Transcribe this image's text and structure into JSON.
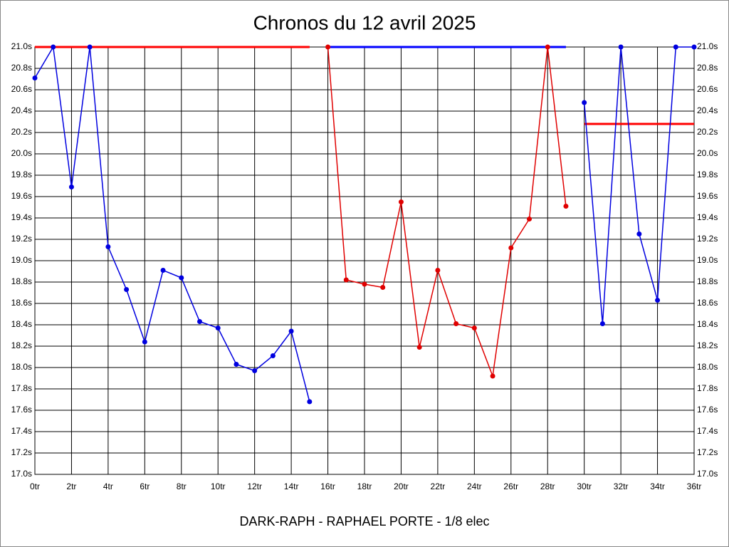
{
  "chart_data": {
    "type": "line",
    "title": "Chronos du 12 avril 2025",
    "footer": "DARK-RAPH - RAPHAEL PORTE - 1/8 elec",
    "x": [
      0,
      1,
      2,
      3,
      4,
      5,
      6,
      7,
      8,
      9,
      10,
      11,
      12,
      13,
      14,
      15,
      16,
      17,
      18,
      19,
      20,
      21,
      22,
      23,
      24,
      25,
      26,
      27,
      28,
      29,
      30,
      31,
      32,
      33,
      34,
      35,
      36
    ],
    "series": [
      {
        "color": "#0000e0",
        "values": [
          20.71,
          21.0,
          19.69,
          21.0,
          19.13,
          18.73,
          18.24,
          18.91,
          18.84,
          18.43,
          18.37,
          18.03,
          17.97,
          18.11,
          18.34,
          17.68,
          null,
          null,
          null,
          null,
          null,
          null,
          null,
          null,
          null,
          null,
          null,
          null,
          null,
          null,
          null,
          null,
          null,
          null,
          null,
          null,
          null
        ]
      },
      {
        "color": "#e00000",
        "values": [
          null,
          null,
          null,
          null,
          null,
          null,
          null,
          null,
          null,
          null,
          null,
          null,
          null,
          null,
          null,
          null,
          21.0,
          18.82,
          18.78,
          18.75,
          19.55,
          18.19,
          18.91,
          18.41,
          18.37,
          17.92,
          19.12,
          19.39,
          21.0,
          19.51,
          null,
          null,
          null,
          null,
          null,
          null,
          null
        ]
      },
      {
        "color": "#0000e0",
        "values": [
          null,
          null,
          null,
          null,
          null,
          null,
          null,
          null,
          null,
          null,
          null,
          null,
          null,
          null,
          null,
          null,
          null,
          null,
          null,
          null,
          null,
          null,
          null,
          null,
          null,
          null,
          null,
          null,
          null,
          null,
          20.48,
          18.41,
          21.0,
          19.25,
          18.63,
          21.0,
          21.0
        ]
      }
    ],
    "reference_lines": [
      {
        "value": 21.0,
        "from": 0,
        "to": 15,
        "color": "#ff0000"
      },
      {
        "value": 21.0,
        "from": 16,
        "to": 29,
        "color": "#0000ff"
      },
      {
        "value": 20.28,
        "from": 30,
        "to": 36,
        "color": "#ff0000"
      }
    ],
    "xlim": [
      0,
      36
    ],
    "xticks": [
      {
        "value": 0,
        "label": "0tr"
      },
      {
        "value": 2,
        "label": "2tr"
      },
      {
        "value": 4,
        "label": "4tr"
      },
      {
        "value": 6,
        "label": "6tr"
      },
      {
        "value": 8,
        "label": "8tr"
      },
      {
        "value": 10,
        "label": "10tr"
      },
      {
        "value": 12,
        "label": "12tr"
      },
      {
        "value": 14,
        "label": "14tr"
      },
      {
        "value": 16,
        "label": "16tr"
      },
      {
        "value": 18,
        "label": "18tr"
      },
      {
        "value": 20,
        "label": "20tr"
      },
      {
        "value": 22,
        "label": "22tr"
      },
      {
        "value": 24,
        "label": "24tr"
      },
      {
        "value": 26,
        "label": "26tr"
      },
      {
        "value": 28,
        "label": "28tr"
      },
      {
        "value": 30,
        "label": "30tr"
      },
      {
        "value": 32,
        "label": "32tr"
      },
      {
        "value": 34,
        "label": "34tr"
      },
      {
        "value": 36,
        "label": "36tr"
      }
    ],
    "ylim": [
      17.0,
      21.0
    ],
    "yticks": [
      {
        "value": 17.0,
        "label": "17.0s"
      },
      {
        "value": 17.2,
        "label": "17.2s"
      },
      {
        "value": 17.4,
        "label": "17.4s"
      },
      {
        "value": 17.6,
        "label": "17.6s"
      },
      {
        "value": 17.8,
        "label": "17.8s"
      },
      {
        "value": 18.0,
        "label": "18.0s"
      },
      {
        "value": 18.2,
        "label": "18.2s"
      },
      {
        "value": 18.4,
        "label": "18.4s"
      },
      {
        "value": 18.6,
        "label": "18.6s"
      },
      {
        "value": 18.8,
        "label": "18.8s"
      },
      {
        "value": 19.0,
        "label": "19.0s"
      },
      {
        "value": 19.2,
        "label": "19.2s"
      },
      {
        "value": 19.4,
        "label": "19.4s"
      },
      {
        "value": 19.6,
        "label": "19.6s"
      },
      {
        "value": 19.8,
        "label": "19.8s"
      },
      {
        "value": 20.0,
        "label": "20.0s"
      },
      {
        "value": 20.2,
        "label": "20.2s"
      },
      {
        "value": 20.4,
        "label": "20.4s"
      },
      {
        "value": 20.6,
        "label": "20.6s"
      },
      {
        "value": 20.8,
        "label": "20.8s"
      },
      {
        "value": 21.0,
        "label": "21.0s"
      }
    ],
    "grid": true
  }
}
